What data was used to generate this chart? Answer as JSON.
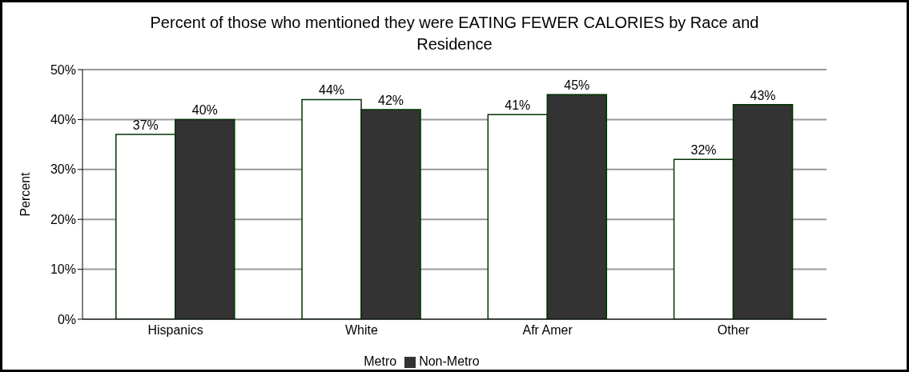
{
  "chart_data": {
    "type": "bar",
    "title": "Percent of those who mentioned they were EATING FEWER CALORIES by Race and Residence",
    "ylabel": "Percent",
    "categories": [
      "Hispanics",
      "White",
      "Afr Amer",
      "Other"
    ],
    "series": [
      {
        "name": "Metro",
        "color": "#ffffff",
        "values": [
          37,
          44,
          41,
          32
        ],
        "value_labels": [
          "37%",
          "44%",
          "41%",
          "32%"
        ]
      },
      {
        "name": "Non-Metro",
        "color": "#333333",
        "values": [
          40,
          42,
          45,
          43
        ],
        "value_labels": [
          "40%",
          "42%",
          "45%",
          "43%"
        ]
      }
    ],
    "ylim": [
      0,
      50
    ],
    "yticks": [
      {
        "value": 0,
        "label": "0%"
      },
      {
        "value": 10,
        "label": "10%"
      },
      {
        "value": 20,
        "label": "20%"
      },
      {
        "value": 30,
        "label": "30%"
      },
      {
        "value": 40,
        "label": "40%"
      },
      {
        "value": 50,
        "label": "50%"
      }
    ],
    "grid": "y",
    "legend": "bottom"
  }
}
